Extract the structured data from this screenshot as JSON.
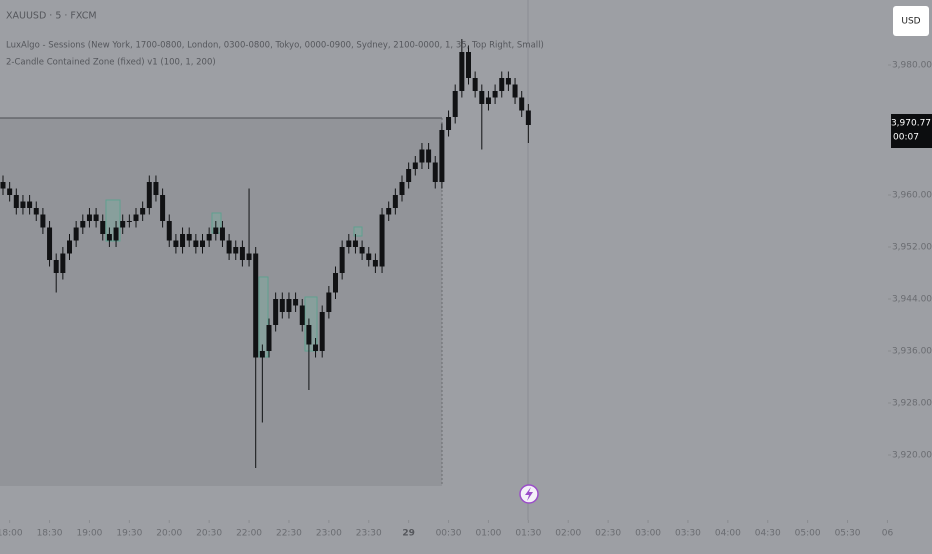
{
  "chart_data": {
    "type": "candlestick",
    "symbol": "XAUUSD · 5 · FXCM",
    "indicators": [
      "LuxAlgo - Sessions (New York, 1700-0800, London, 0300-0800, Tokyo, 0000-0900, Sydney, 2100-0000, 1, 35, Top Right, Small)",
      "2-Candle Contained Zone (fixed) v1 (100, 1, 200)"
    ],
    "currency": "USD",
    "countdown": "00:07",
    "last_price": {
      "value": 3970.77,
      "label": "3,970.77"
    },
    "up_color": "#111214",
    "down_color": "#111214",
    "open": [
      3962,
      3961,
      3960,
      3958,
      3959,
      3958,
      3957,
      3955,
      3950,
      3948,
      3951,
      3953,
      3955,
      3956,
      3957,
      3956,
      3954,
      3953,
      3955,
      3956,
      3956,
      3957,
      3958,
      3962,
      3960,
      3956,
      3953,
      3952,
      3954,
      3953,
      3952,
      3953,
      3954,
      3955,
      3953,
      3951,
      3952,
      3950,
      3951,
      3935,
      3936,
      3940,
      3944,
      3942,
      3944,
      3943,
      3940,
      3937,
      3936,
      3942,
      3945,
      3948,
      3952,
      3953,
      3952,
      3951,
      3950,
      3949,
      3957,
      3958,
      3960,
      3962,
      3964,
      3965,
      3967,
      3965,
      3962,
      3970,
      3972,
      3976,
      3982,
      3978,
      3976,
      3974,
      3975,
      3976,
      3978,
      3977,
      3975,
      3973
    ],
    "high": [
      3963,
      3962,
      3961,
      3960,
      3960,
      3959,
      3958,
      3956,
      3951,
      3952,
      3954,
      3956,
      3957,
      3958,
      3958,
      3957,
      3955,
      3956,
      3957,
      3957,
      3958,
      3959,
      3963,
      3963,
      3961,
      3957,
      3954,
      3955,
      3955,
      3954,
      3954,
      3955,
      3956,
      3956,
      3954,
      3953,
      3953,
      3961,
      3952,
      3937,
      3941,
      3945,
      3945,
      3945,
      3945,
      3944,
      3941,
      3938,
      3943,
      3946,
      3949,
      3953,
      3954,
      3954,
      3953,
      3952,
      3951,
      3958,
      3959,
      3961,
      3963,
      3965,
      3966,
      3968,
      3968,
      3966,
      3971,
      3973,
      3977,
      3984,
      3983,
      3979,
      3977,
      3976,
      3977,
      3979,
      3979,
      3978,
      3976,
      3974
    ],
    "low": [
      3960,
      3959,
      3957,
      3957,
      3957,
      3956,
      3954,
      3949,
      3945,
      3947,
      3950,
      3952,
      3954,
      3955,
      3955,
      3953,
      3952,
      3952,
      3954,
      3955,
      3955,
      3956,
      3957,
      3959,
      3955,
      3952,
      3951,
      3951,
      3952,
      3951,
      3951,
      3952,
      3953,
      3952,
      3950,
      3950,
      3949,
      3949,
      3918,
      3925,
      3935,
      3939,
      3941,
      3941,
      3942,
      3939,
      3930,
      3935,
      3935,
      3941,
      3944,
      3947,
      3951,
      3951,
      3950,
      3949,
      3948,
      3948,
      3956,
      3957,
      3959,
      3961,
      3963,
      3964,
      3964,
      3961,
      3961,
      3969,
      3971,
      3975,
      3977,
      3975,
      3967,
      3973,
      3974,
      3975,
      3976,
      3974,
      3972,
      3968
    ],
    "close": [
      3961,
      3960,
      3958,
      3959,
      3958,
      3957,
      3955,
      3950,
      3948,
      3951,
      3953,
      3955,
      3956,
      3957,
      3956,
      3954,
      3953,
      3955,
      3956,
      3956,
      3957,
      3958,
      3962,
      3960,
      3956,
      3953,
      3952,
      3954,
      3953,
      3952,
      3953,
      3954,
      3955,
      3953,
      3951,
      3952,
      3950,
      3951,
      3935,
      3936,
      3940,
      3944,
      3942,
      3944,
      3943,
      3940,
      3937,
      3936,
      3942,
      3945,
      3948,
      3952,
      3953,
      3952,
      3951,
      3950,
      3949,
      3957,
      3958,
      3960,
      3962,
      3964,
      3965,
      3967,
      3965,
      3962,
      3970,
      3972,
      3976,
      3982,
      3978,
      3976,
      3974,
      3975,
      3976,
      3978,
      3977,
      3975,
      3973,
      3970.77
    ],
    "ylim": [
      3910,
      3990
    ],
    "yticks": [
      {
        "value": 3980,
        "label": "3,980.00"
      },
      {
        "value": 3960,
        "label": "3,960.00"
      },
      {
        "value": 3952,
        "label": "3,952.00"
      },
      {
        "value": 3944,
        "label": "3,944.00"
      },
      {
        "value": 3936,
        "label": "3,936.00"
      },
      {
        "value": 3928,
        "label": "3,928.00"
      },
      {
        "value": 3920,
        "label": "3,920.00"
      }
    ],
    "xticks": [
      {
        "value": 1,
        "label": "18:00"
      },
      {
        "value": 7,
        "label": "18:30"
      },
      {
        "value": 13,
        "label": "19:00"
      },
      {
        "value": 19,
        "label": "19:30"
      },
      {
        "value": 25,
        "label": "20:00"
      },
      {
        "value": 31,
        "label": "20:30"
      },
      {
        "value": 37,
        "label": "22:00"
      },
      {
        "value": 43,
        "label": "22:30"
      },
      {
        "value": 49,
        "label": "23:00"
      },
      {
        "value": 55,
        "label": "23:30"
      },
      {
        "value": 61,
        "label": "29"
      },
      {
        "value": 67,
        "label": "00:30"
      },
      {
        "value": 73,
        "label": "01:00"
      },
      {
        "value": 79,
        "label": "01:30"
      },
      {
        "value": 85,
        "label": "02:00"
      },
      {
        "value": 91,
        "label": "02:30"
      },
      {
        "value": 97,
        "label": "03:00"
      },
      {
        "value": 103,
        "label": "03:30"
      },
      {
        "value": 109,
        "label": "04:00"
      },
      {
        "value": 115,
        "label": "04:30"
      },
      {
        "value": 121,
        "label": "05:00"
      },
      {
        "value": 127,
        "label": "05:30"
      },
      {
        "value": 133,
        "label": "06"
      }
    ]
  }
}
